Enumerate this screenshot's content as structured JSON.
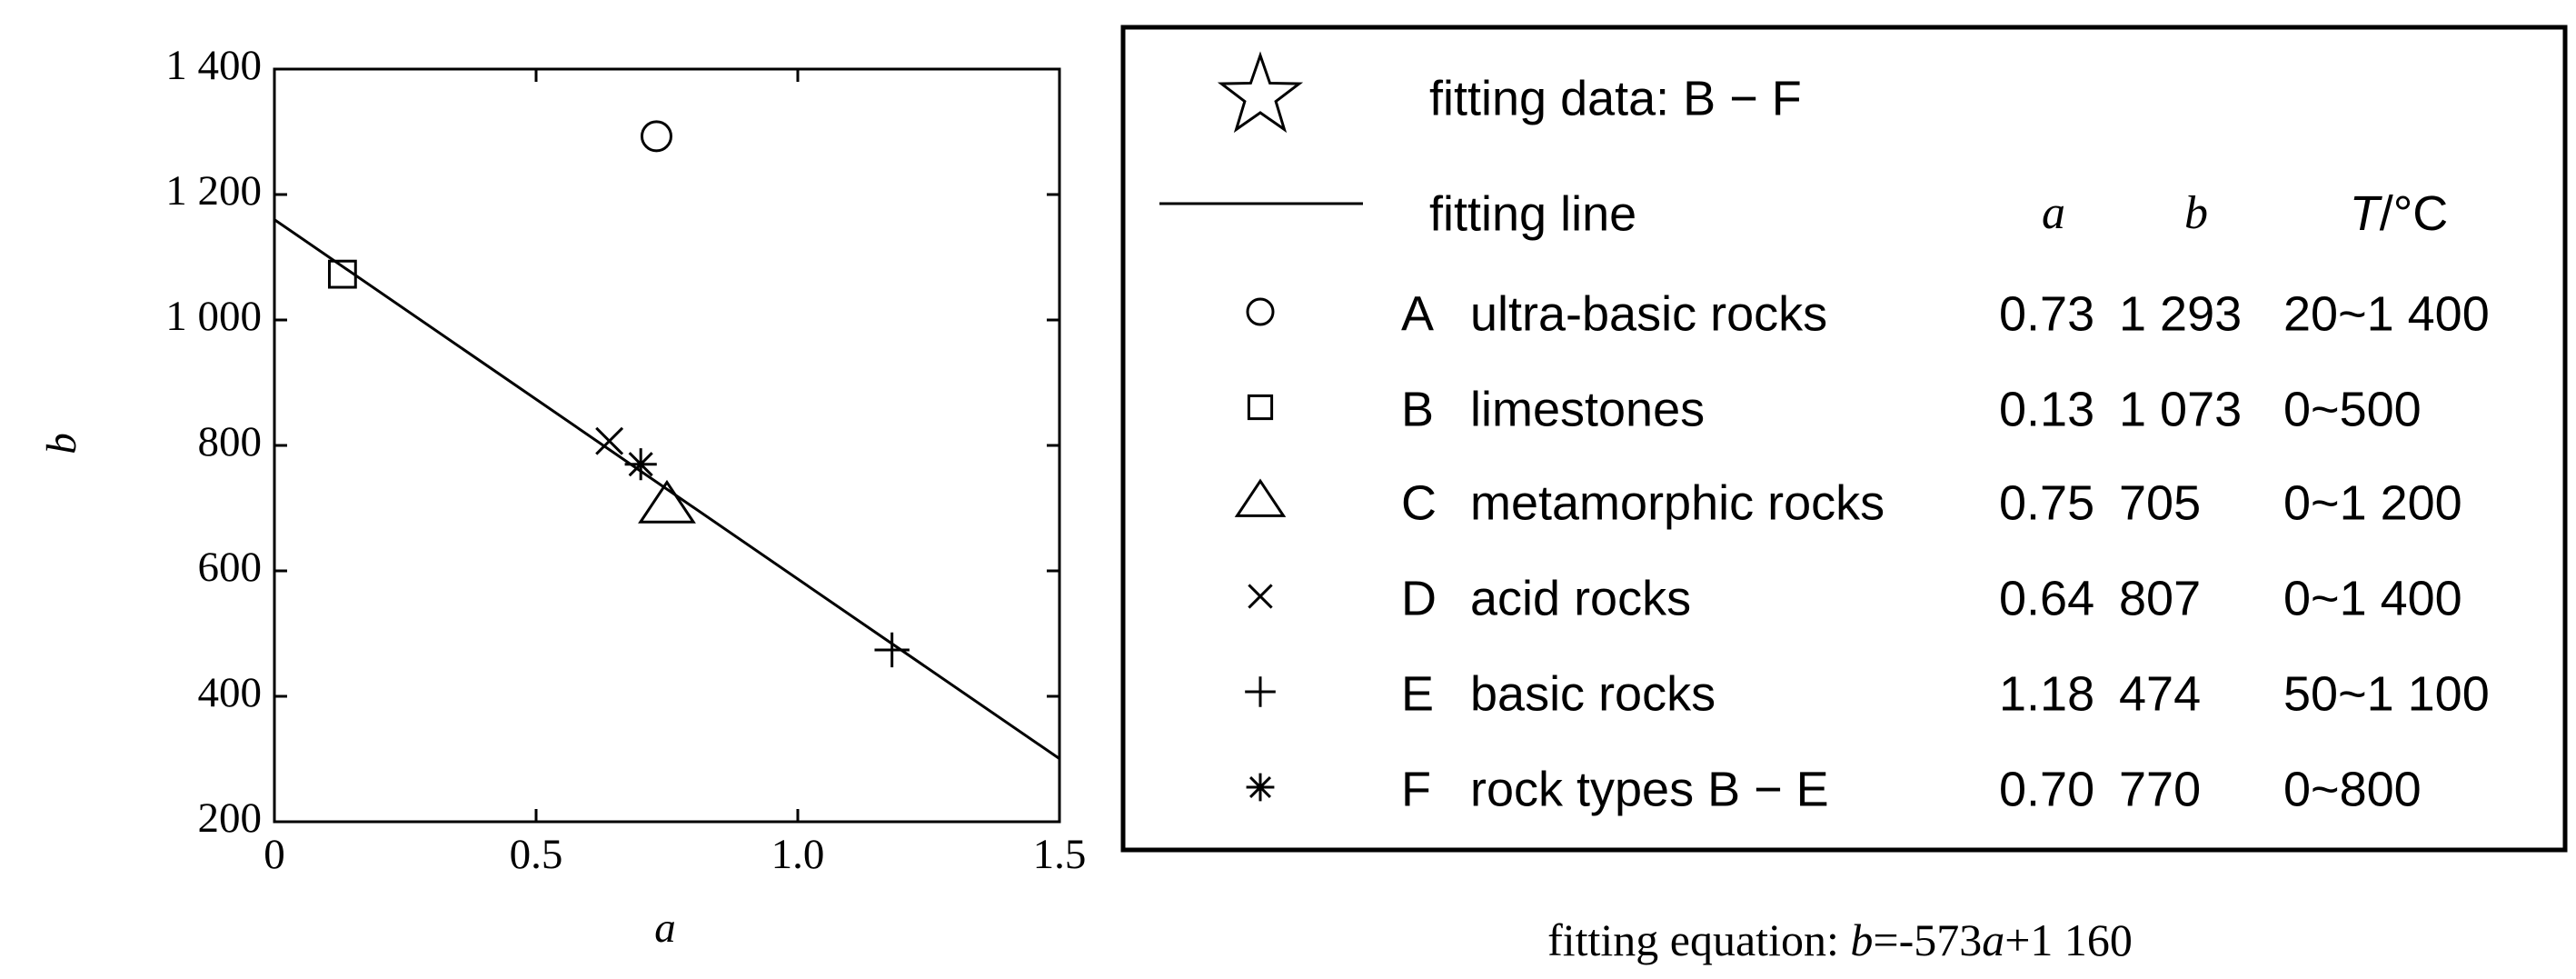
{
  "chart_data": {
    "type": "scatter",
    "xlabel": "a",
    "ylabel": "b",
    "xlim": [
      0,
      1.5
    ],
    "ylim": [
      200,
      1400
    ],
    "xticks": [
      0,
      0.5,
      {
        "value": 1,
        "label": "1.0"
      },
      1.5
    ],
    "yticks": [
      200,
      400,
      600,
      800,
      {
        "value": 1000,
        "label": "1 000"
      },
      {
        "value": 1200,
        "label": "1 200"
      },
      {
        "value": 1400,
        "label": "1 400"
      }
    ],
    "range_header": [
      "T",
      "/°C"
    ],
    "series": [
      {
        "letter": "A",
        "name": "ultra-basic rocks",
        "marker": "circle",
        "x": [
          0.73
        ],
        "values": [
          1293
        ],
        "value_labels": [
          "1 293"
        ],
        "range": "20~1 400"
      },
      {
        "letter": "B",
        "name": "limestones",
        "marker": "square",
        "x": [
          0.13
        ],
        "values": [
          1073
        ],
        "value_labels": [
          "1 073"
        ],
        "range": "0~500"
      },
      {
        "letter": "C",
        "name": "metamorphic rocks",
        "marker": "triangle",
        "x": [
          0.75
        ],
        "values": [
          705
        ],
        "range": "0~1 200"
      },
      {
        "letter": "D",
        "name": "acid rocks",
        "marker": "x",
        "x": [
          0.64
        ],
        "values": [
          807
        ],
        "range": "0~1 400"
      },
      {
        "letter": "E",
        "name": "basic rocks",
        "marker": "plus",
        "x": [
          1.18
        ],
        "values": [
          474
        ],
        "range": "50~1 100"
      },
      {
        "letter": "F",
        "name": "rock types B − E",
        "marker": "asterisk",
        "x": [
          0.7
        ],
        "x_labels": [
          "0.70"
        ],
        "values": [
          770
        ],
        "range": "0~800"
      }
    ],
    "fit": {
      "data_label": "fitting data: B − F",
      "name": "fitting line",
      "caption": "fitting equation: ",
      "equals": "=",
      "slope": -573,
      "plus": "+",
      "intercept": {
        "value": 1160,
        "label": "1 160"
      }
    }
  }
}
